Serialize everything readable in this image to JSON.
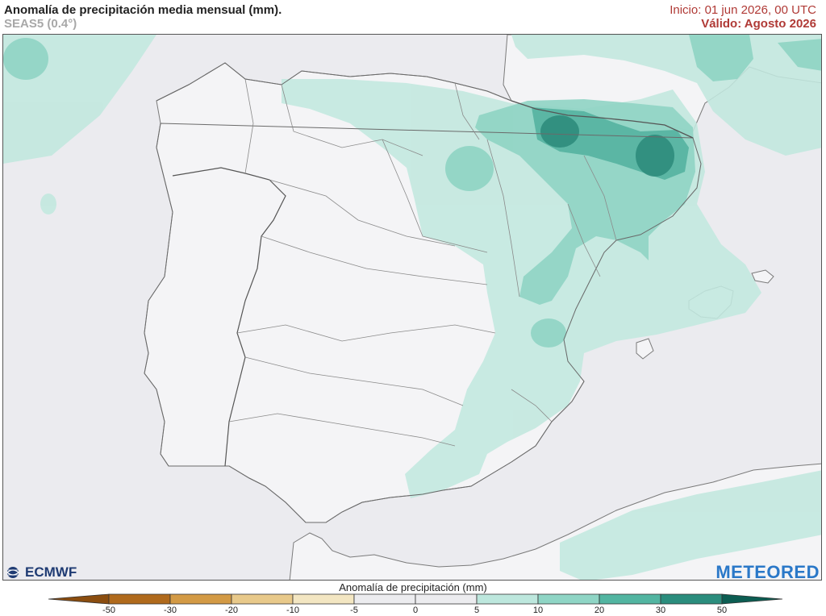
{
  "header": {
    "title": "Anomalía de precipitación media mensual (mm).",
    "subtitle": "SEAS5 (0.4°)",
    "init": "Inicio: 01 jun 2026, 00 UTC",
    "valid": "Válido: Agosto 2026"
  },
  "brands": {
    "left": "ECMWF",
    "right": "METEORED"
  },
  "legend": {
    "title": "Anomalía de precipitación (mm)",
    "ticks": [
      "-50",
      "-30",
      "-20",
      "-10",
      "-5",
      "0",
      "5",
      "10",
      "20",
      "30",
      "50"
    ],
    "colors": [
      "#8b4d0f",
      "#b06a1c",
      "#d39a45",
      "#e8c98a",
      "#f3e6c2",
      "#ececef",
      "#ececef",
      "#bde7dd",
      "#8fd5c5",
      "#52b5a1",
      "#2b8d7d",
      "#0c5d52"
    ]
  },
  "colors": {
    "land": "#f3f3f5",
    "sea": "#ebebef",
    "anom_5_10": "#c2e8df",
    "anom_10_20": "#8fd4c4",
    "anom_20_30": "#54b3a0",
    "anom_30_50": "#2b8a7a"
  }
}
